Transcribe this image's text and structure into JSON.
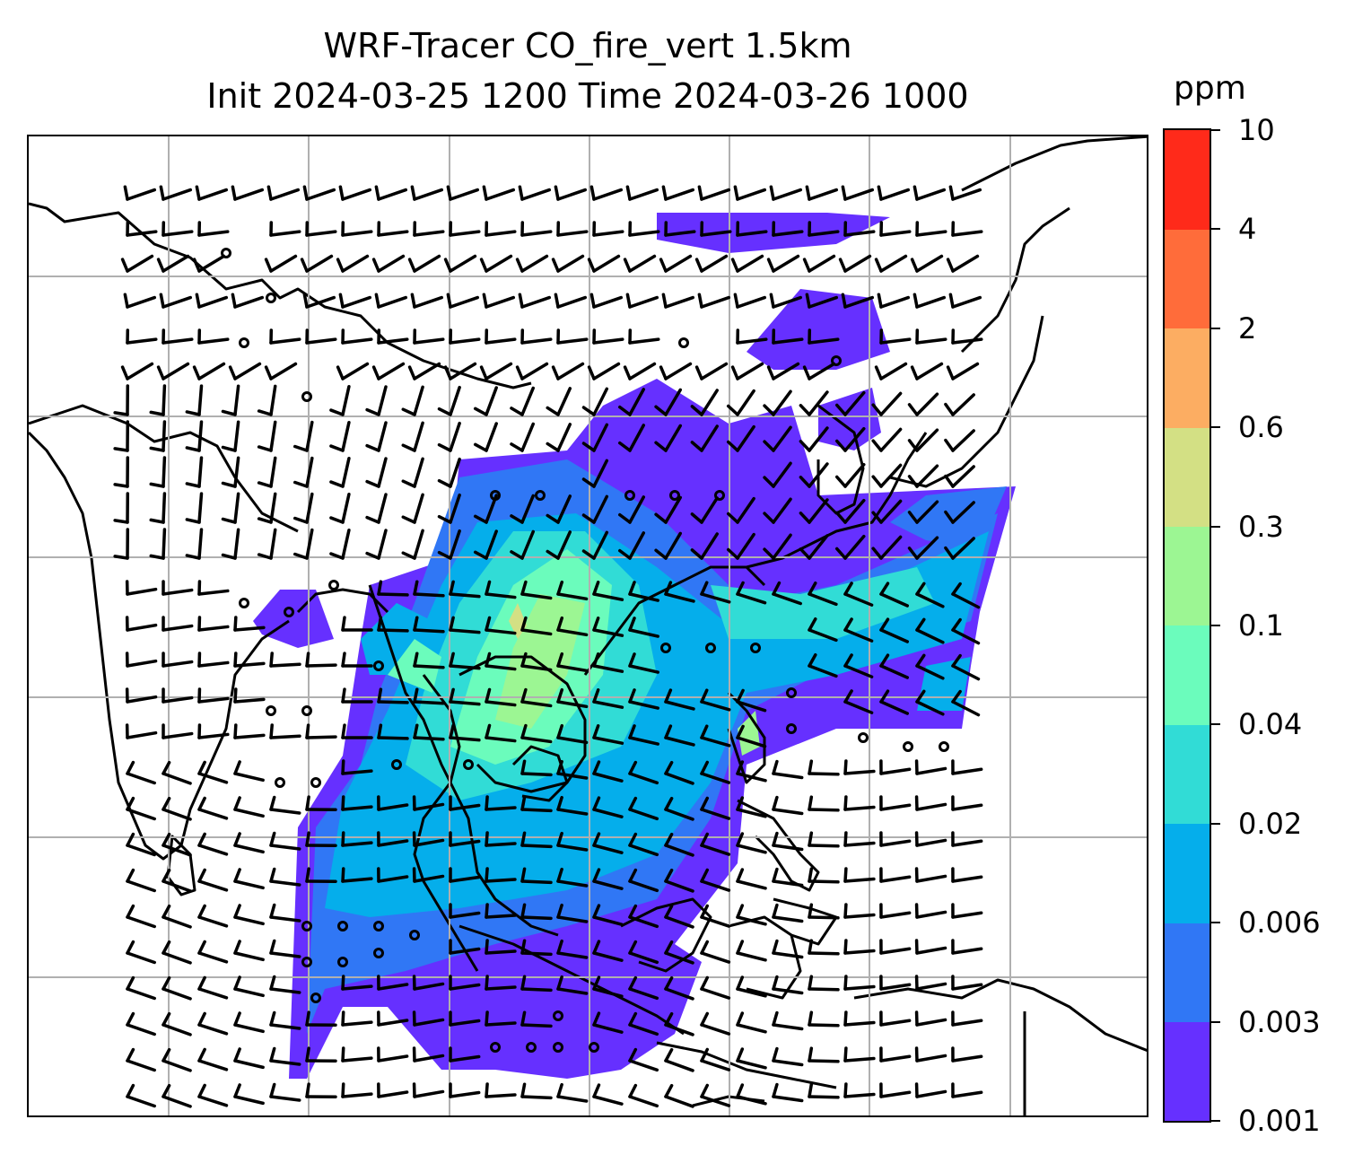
{
  "title": {
    "line1": "WRF-Tracer CO_fire_vert 1.5km",
    "line2": "Init 2024-03-25 1200 Time 2024-03-26 1000"
  },
  "colorbar": {
    "unit": "ppm",
    "tick_labels": [
      "0.001",
      "0.003",
      "0.006",
      "0.02",
      "0.04",
      "0.1",
      "0.3",
      "0.6",
      "2",
      "4",
      "10"
    ],
    "colors": [
      "#6630ff",
      "#3077f5",
      "#05aeeb",
      "#31dcd6",
      "#6bfcbc",
      "#9cf693",
      "#d3e084",
      "#fcad62",
      "#ff6c3a",
      "#ff2a1a"
    ]
  },
  "map": {
    "grid": true,
    "gridline_color": "#b0b0b0",
    "land_outline_color": "#000000",
    "wind_barb_color": "#000000",
    "tracer_levels_shown": [
      "0.001",
      "0.003",
      "0.006",
      "0.02",
      "0.04",
      "0.1",
      "0.3"
    ]
  }
}
